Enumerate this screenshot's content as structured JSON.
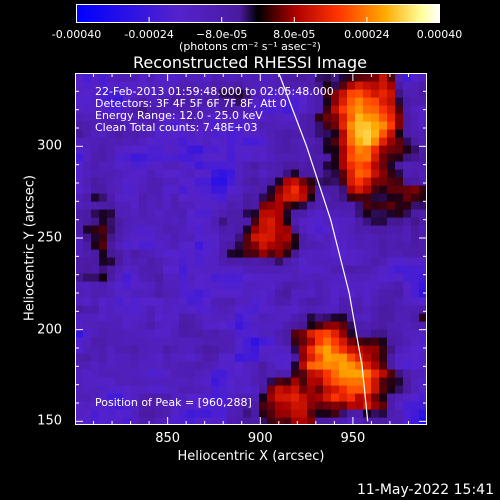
{
  "chart_data": {
    "type": "heatmap",
    "title": "Reconstructed RHESSI Image",
    "xlabel": "Heliocentric X (arcsec)",
    "ylabel": "Heliocentric Y (arcsec)",
    "xlim": [
      800,
      990
    ],
    "ylim": [
      148,
      340
    ],
    "xticks": [
      850,
      900,
      950
    ],
    "xtick_labels": [
      "850",
      "900",
      "950"
    ],
    "yticks": [
      150,
      200,
      250,
      300
    ],
    "ytick_labels": [
      "150",
      "200",
      "250",
      "300"
    ],
    "colorbar": {
      "range": [
        -0.0004,
        0.0004
      ],
      "tick_values": [
        -0.0004,
        -0.00024,
        -8e-05,
        8e-05,
        0.00024,
        0.0004
      ],
      "tick_labels": [
        "-0.00040",
        "-0.00024",
        "−8.0e-05",
        "8.0e-05",
        "0.00024",
        "0.00040"
      ],
      "unit_label": "(photons cm⁻² s⁻¹ asec⁻²)",
      "colormap": "blue-purple-red-orange-yellow-white"
    },
    "sources": [
      {
        "x": 955,
        "y": 310,
        "amp": 0.00042,
        "sx": 14,
        "sy": 28
      },
      {
        "x": 950,
        "y": 175,
        "amp": 0.0004,
        "sx": 16,
        "sy": 14
      },
      {
        "x": 935,
        "y": 195,
        "amp": 0.0003,
        "sx": 12,
        "sy": 10
      },
      {
        "x": 905,
        "y": 250,
        "amp": 0.00026,
        "sx": 12,
        "sy": 16
      },
      {
        "x": 920,
        "y": 278,
        "amp": 0.0002,
        "sx": 10,
        "sy": 8
      },
      {
        "x": 915,
        "y": 160,
        "amp": 0.00022,
        "sx": 14,
        "sy": 10
      },
      {
        "x": 812,
        "y": 240,
        "amp": 0.00016,
        "sx": 8,
        "sy": 28
      },
      {
        "x": 980,
        "y": 265,
        "amp": 0.00016,
        "sx": 8,
        "sy": 22
      },
      {
        "x": 870,
        "y": 330,
        "amp": 0.0001,
        "sx": 16,
        "sy": 8
      }
    ],
    "limb_curve": [
      [
        910,
        340
      ],
      [
        925,
        300
      ],
      [
        938,
        260
      ],
      [
        948,
        220
      ],
      [
        955,
        180
      ],
      [
        958,
        150
      ]
    ],
    "peak_position": [
      960,
      288
    ]
  },
  "annotations": {
    "time_range": "22-Feb-2013 01:59:48.000 to 02:05:48.000",
    "detectors": "Detectors: 3F 4F 5F 6F 7F 8F, Att 0",
    "energy": "Energy Range: 12.0 - 25.0 keV",
    "clean": "Clean     Total counts: 7.48E+03",
    "peak": "Position of Peak = [960,288]"
  },
  "timestamp": "11-May-2022 15:41"
}
